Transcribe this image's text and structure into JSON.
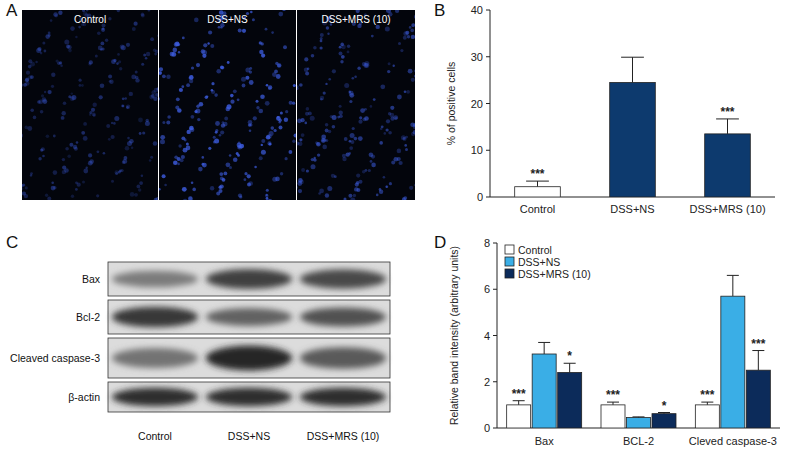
{
  "figure": {
    "panels": [
      "A",
      "B",
      "C",
      "D"
    ]
  },
  "images": {
    "labels": [
      "Control",
      "DSS+NS",
      "DSS+MRS (10)"
    ]
  },
  "blot": {
    "rows": [
      "Bax",
      "Bcl-2",
      "Cleaved caspase-3",
      "β-actin"
    ],
    "columns": [
      "Control",
      "DSS+NS",
      "DSS+MRS (10)"
    ]
  },
  "chart_data": [
    {
      "type": "bar",
      "y_label": "% of positive cells",
      "categories": [
        "Control",
        "DSS+NS",
        "DSS+MRS (10)"
      ],
      "values": [
        2.2,
        24.5,
        13.5
      ],
      "errors": [
        1.2,
        5.4,
        3.2
      ],
      "significance": [
        "***",
        null,
        "***"
      ],
      "colors": [
        "#ffffff",
        "#0d3a6e",
        "#0d3a6e"
      ],
      "ylim": [
        0,
        40
      ],
      "yticks": [
        0,
        10,
        20,
        30,
        40
      ]
    },
    {
      "type": "bar",
      "y_label": "Relative band intensity (arbitrary units)",
      "categories": [
        "Bax",
        "BCL-2",
        "Cleved caspase-3"
      ],
      "series": [
        {
          "name": "Control",
          "color": "#ffffff",
          "values": [
            1.0,
            1.0,
            1.0
          ],
          "errors": [
            0.18,
            0.12,
            0.12
          ],
          "significance": [
            "***",
            "***",
            "***"
          ]
        },
        {
          "name": "DSS+NS",
          "color": "#3aaee6",
          "values": [
            3.2,
            0.45,
            5.7
          ],
          "errors": [
            0.5,
            0.03,
            0.9
          ],
          "significance": [
            null,
            null,
            null
          ]
        },
        {
          "name": "DSS+MRS (10)",
          "color": "#0c2b5a",
          "values": [
            2.4,
            0.62,
            2.5
          ],
          "errors": [
            0.4,
            0.05,
            0.85
          ],
          "significance": [
            "*",
            "*",
            "***"
          ]
        }
      ],
      "ylim": [
        0,
        8
      ],
      "yticks": [
        0,
        2,
        4,
        6,
        8
      ],
      "legend": "upper left"
    }
  ]
}
